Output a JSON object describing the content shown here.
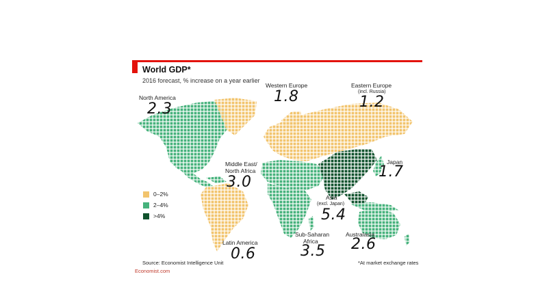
{
  "title": "World GDP*",
  "subtitle": "2016 forecast, % increase on a year earlier",
  "colors": {
    "low": "#f2c46d",
    "mid": "#46b27c",
    "high": "#10522d",
    "accent": "#e3120b"
  },
  "legend": [
    {
      "label": "0–2%",
      "color": "#f2c46d"
    },
    {
      "label": "2–4%",
      "color": "#46b27c"
    },
    {
      "label": ">4%",
      "color": "#10522d"
    }
  ],
  "regions": {
    "north_america": {
      "name": "North America",
      "value": "2.3"
    },
    "western_europe": {
      "name": "Western Europe",
      "value": "1.8"
    },
    "eastern_europe": {
      "name": "Eastern Europe",
      "note": "(incl. Russia)",
      "value": "1.2"
    },
    "middle_east": {
      "name": "Middle East/",
      "name2": "North Africa",
      "value": "3.0"
    },
    "japan": {
      "name": "Japan",
      "value": "1.7"
    },
    "asia": {
      "name": "Asia",
      "note": "(excl. Japan)",
      "value": "5.4"
    },
    "latin_america": {
      "name": "Latin America",
      "value": "0.6"
    },
    "sub_saharan": {
      "name": "Sub-Saharan",
      "name2": "Africa",
      "value": "3.5"
    },
    "australasia": {
      "name": "Australasia",
      "value": "2.6"
    }
  },
  "source": "Source: Economist Intelligence Unit",
  "site": "Economist.com",
  "footnote": "*At market exchange rates"
}
